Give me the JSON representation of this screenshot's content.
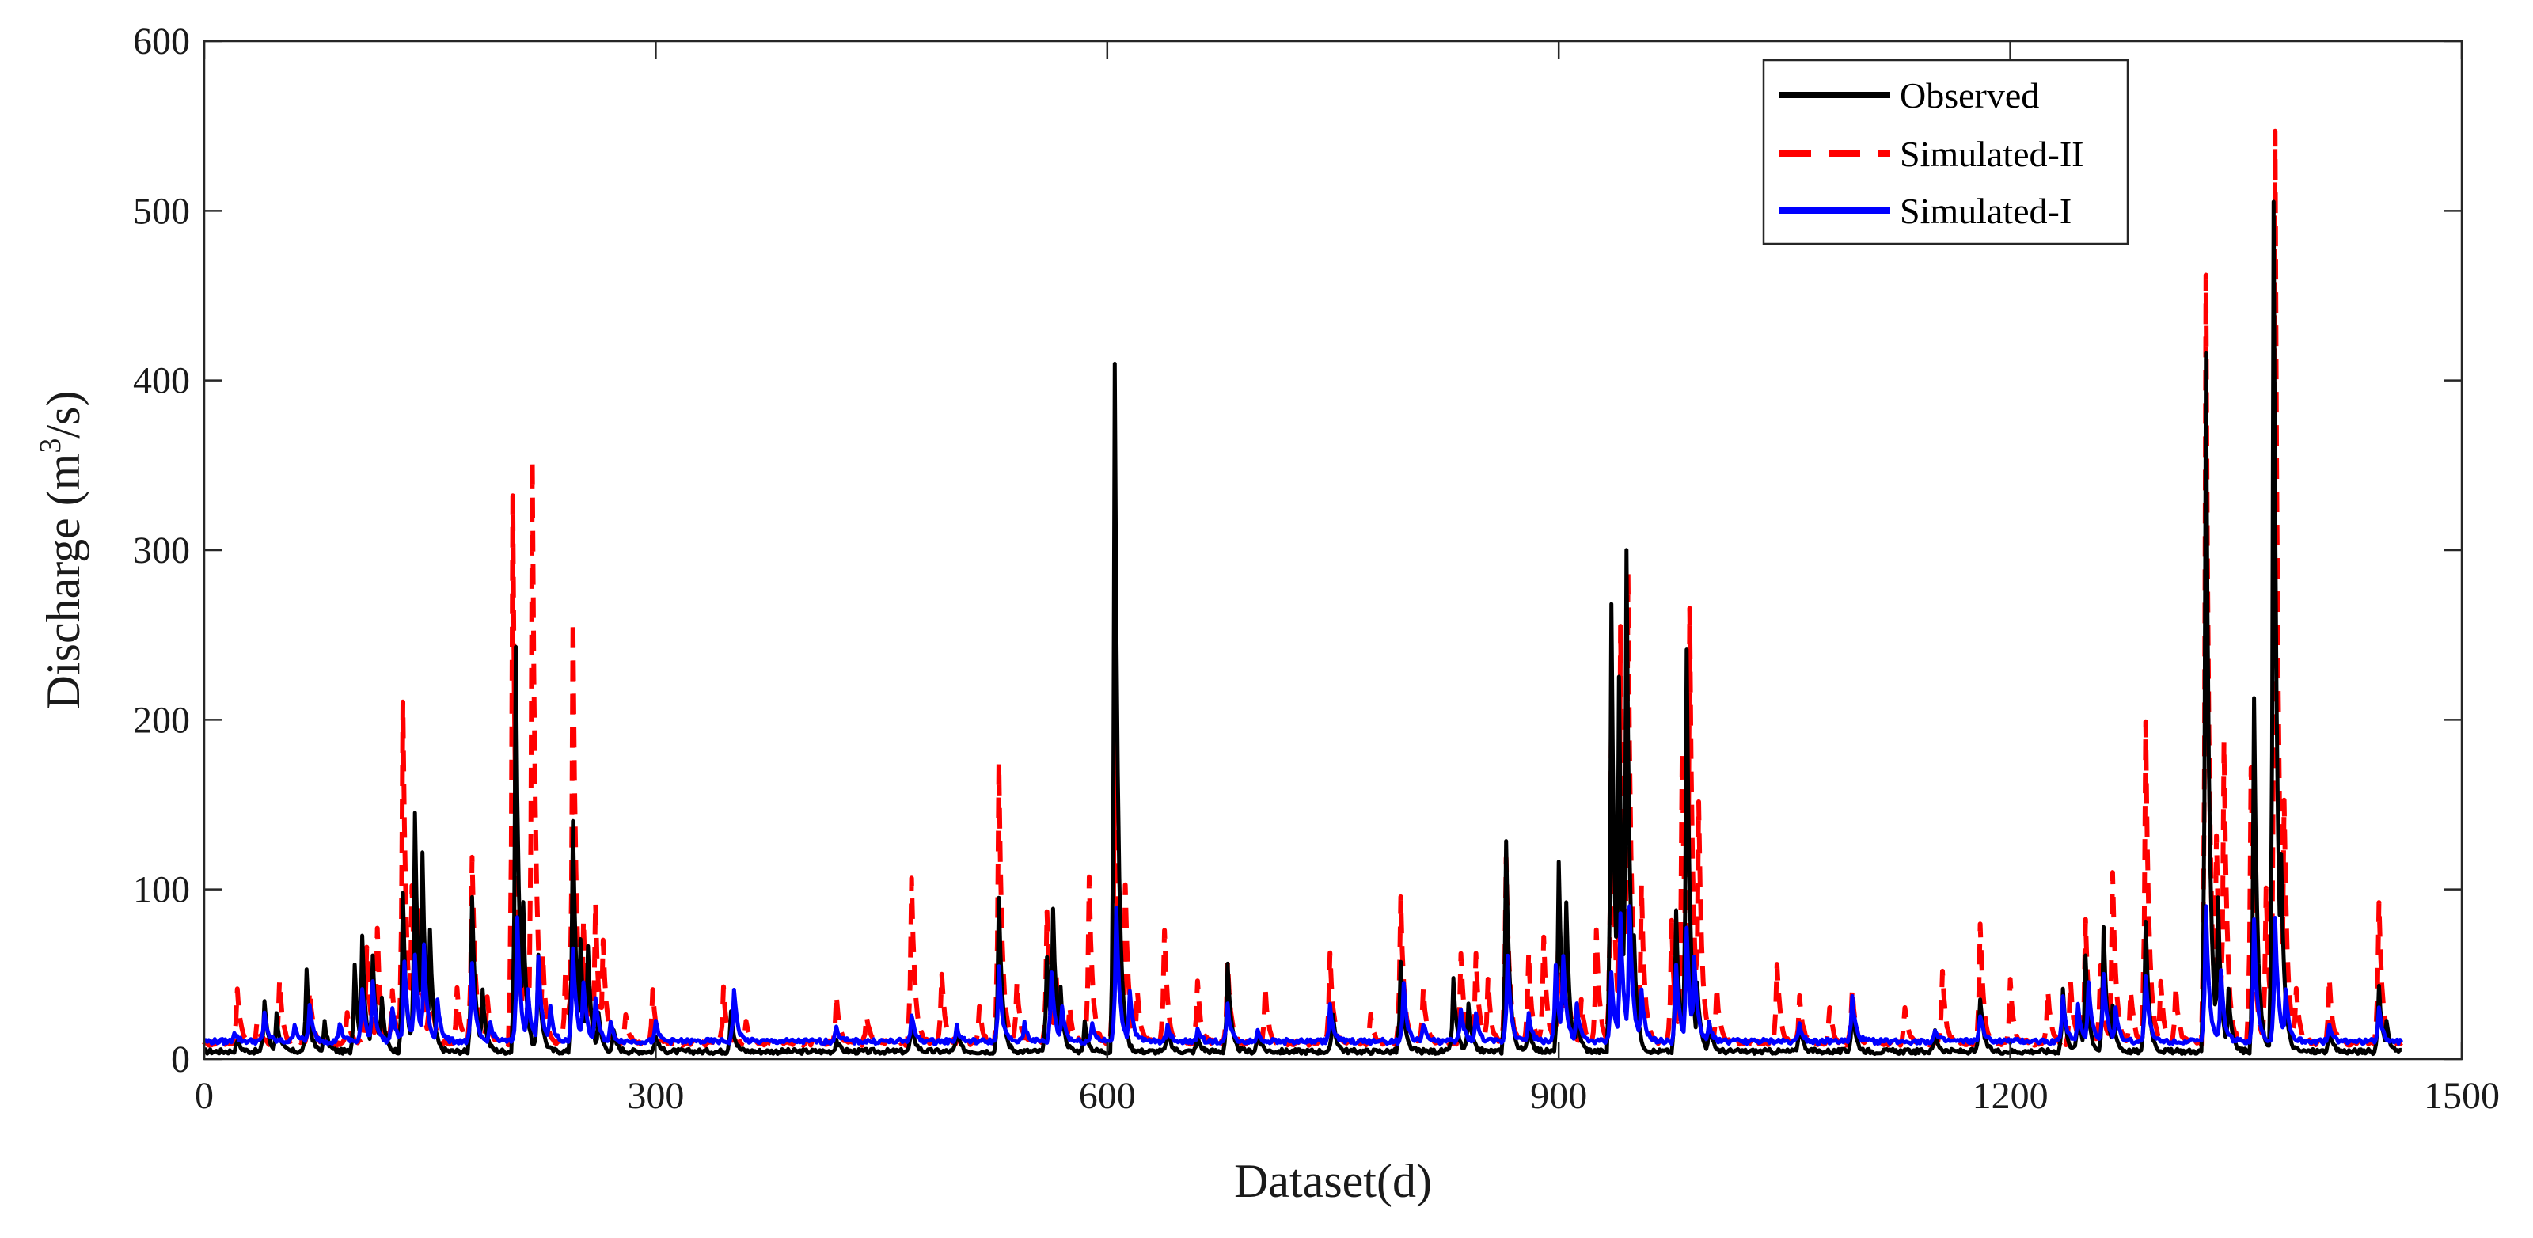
{
  "chart_data": {
    "type": "line",
    "title": "",
    "xlabel": "Dataset(d)",
    "ylabel_prefix": "Discharge (m",
    "ylabel_sup": "3",
    "ylabel_suffix": "/s)",
    "xlim": [
      0,
      1500
    ],
    "ylim": [
      0,
      600
    ],
    "x_ticks": [
      0,
      300,
      600,
      900,
      1200,
      1500
    ],
    "y_ticks": [
      0,
      100,
      200,
      300,
      400,
      500,
      600
    ],
    "grid": false,
    "legend_position": "top-right",
    "series": [
      {
        "name": "Observed",
        "color": "#000000",
        "style": "solid",
        "baseline": 3,
        "peaks": [
          [
            22,
            10
          ],
          [
            40,
            33
          ],
          [
            48,
            25
          ],
          [
            68,
            50
          ],
          [
            80,
            20
          ],
          [
            100,
            55
          ],
          [
            105,
            72
          ],
          [
            112,
            60
          ],
          [
            118,
            35
          ],
          [
            132,
            95
          ],
          [
            140,
            145
          ],
          [
            145,
            120
          ],
          [
            150,
            75
          ],
          [
            178,
            95
          ],
          [
            185,
            40
          ],
          [
            207,
            240
          ],
          [
            212,
            90
          ],
          [
            222,
            60
          ],
          [
            245,
            140
          ],
          [
            250,
            70
          ],
          [
            255,
            65
          ],
          [
            262,
            25
          ],
          [
            272,
            15
          ],
          [
            300,
            12
          ],
          [
            350,
            28
          ],
          [
            420,
            10
          ],
          [
            470,
            22
          ],
          [
            500,
            15
          ],
          [
            528,
            95
          ],
          [
            560,
            60
          ],
          [
            564,
            88
          ],
          [
            569,
            40
          ],
          [
            585,
            20
          ],
          [
            605,
            407
          ],
          [
            640,
            15
          ],
          [
            660,
            12
          ],
          [
            680,
            55
          ],
          [
            700,
            15
          ],
          [
            750,
            25
          ],
          [
            795,
            55
          ],
          [
            830,
            45
          ],
          [
            840,
            30
          ],
          [
            865,
            128
          ],
          [
            880,
            20
          ],
          [
            900,
            115
          ],
          [
            905,
            90
          ],
          [
            912,
            30
          ],
          [
            935,
            268
          ],
          [
            940,
            225
          ],
          [
            945,
            300
          ],
          [
            950,
            70
          ],
          [
            978,
            85
          ],
          [
            985,
            240
          ],
          [
            992,
            45
          ],
          [
            1000,
            20
          ],
          [
            1060,
            20
          ],
          [
            1095,
            30
          ],
          [
            1150,
            15
          ],
          [
            1180,
            35
          ],
          [
            1235,
            40
          ],
          [
            1245,
            30
          ],
          [
            1250,
            60
          ],
          [
            1262,
            75
          ],
          [
            1268,
            30
          ],
          [
            1290,
            80
          ],
          [
            1330,
            415
          ],
          [
            1338,
            95
          ],
          [
            1345,
            40
          ],
          [
            1362,
            210
          ],
          [
            1375,
            505
          ],
          [
            1380,
            120
          ],
          [
            1412,
            15
          ],
          [
            1445,
            42
          ],
          [
            1450,
            20
          ]
        ]
      },
      {
        "name": "Simulated-II",
        "color": "#ff0000",
        "style": "dashed",
        "baseline": 8,
        "peaks": [
          [
            22,
            40
          ],
          [
            35,
            20
          ],
          [
            50,
            45
          ],
          [
            70,
            40
          ],
          [
            95,
            25
          ],
          [
            108,
            65
          ],
          [
            115,
            75
          ],
          [
            125,
            40
          ],
          [
            132,
            210
          ],
          [
            138,
            100
          ],
          [
            143,
            85
          ],
          [
            150,
            60
          ],
          [
            168,
            40
          ],
          [
            178,
            118
          ],
          [
            188,
            35
          ],
          [
            205,
            330
          ],
          [
            212,
            70
          ],
          [
            218,
            352
          ],
          [
            225,
            60
          ],
          [
            240,
            50
          ],
          [
            245,
            258
          ],
          [
            252,
            80
          ],
          [
            260,
            90
          ],
          [
            265,
            70
          ],
          [
            280,
            25
          ],
          [
            298,
            40
          ],
          [
            345,
            40
          ],
          [
            360,
            20
          ],
          [
            420,
            35
          ],
          [
            440,
            25
          ],
          [
            470,
            105
          ],
          [
            490,
            50
          ],
          [
            515,
            30
          ],
          [
            528,
            173
          ],
          [
            540,
            45
          ],
          [
            560,
            85
          ],
          [
            566,
            50
          ],
          [
            575,
            30
          ],
          [
            588,
            105
          ],
          [
            605,
            190
          ],
          [
            612,
            100
          ],
          [
            620,
            40
          ],
          [
            638,
            75
          ],
          [
            660,
            45
          ],
          [
            680,
            55
          ],
          [
            705,
            40
          ],
          [
            748,
            60
          ],
          [
            775,
            25
          ],
          [
            795,
            95
          ],
          [
            810,
            40
          ],
          [
            835,
            62
          ],
          [
            845,
            60
          ],
          [
            853,
            45
          ],
          [
            865,
            118
          ],
          [
            880,
            60
          ],
          [
            890,
            70
          ],
          [
            900,
            80
          ],
          [
            905,
            70
          ],
          [
            915,
            35
          ],
          [
            925,
            75
          ],
          [
            935,
            200
          ],
          [
            941,
            255
          ],
          [
            946,
            285
          ],
          [
            955,
            100
          ],
          [
            975,
            80
          ],
          [
            982,
            180
          ],
          [
            987,
            265
          ],
          [
            993,
            150
          ],
          [
            1005,
            40
          ],
          [
            1045,
            55
          ],
          [
            1060,
            35
          ],
          [
            1080,
            30
          ],
          [
            1095,
            40
          ],
          [
            1130,
            30
          ],
          [
            1155,
            50
          ],
          [
            1180,
            78
          ],
          [
            1200,
            45
          ],
          [
            1225,
            40
          ],
          [
            1240,
            45
          ],
          [
            1250,
            80
          ],
          [
            1260,
            55
          ],
          [
            1268,
            110
          ],
          [
            1280,
            40
          ],
          [
            1290,
            198
          ],
          [
            1300,
            45
          ],
          [
            1310,
            40
          ],
          [
            1330,
            462
          ],
          [
            1337,
            130
          ],
          [
            1342,
            185
          ],
          [
            1360,
            170
          ],
          [
            1370,
            100
          ],
          [
            1376,
            545
          ],
          [
            1382,
            150
          ],
          [
            1390,
            40
          ],
          [
            1412,
            45
          ],
          [
            1445,
            90
          ]
        ]
      },
      {
        "name": "Simulated-I",
        "color": "#0000ff",
        "style": "solid",
        "baseline": 9,
        "peaks": [
          [
            20,
            15
          ],
          [
            40,
            25
          ],
          [
            60,
            20
          ],
          [
            70,
            30
          ],
          [
            90,
            20
          ],
          [
            105,
            40
          ],
          [
            112,
            45
          ],
          [
            125,
            30
          ],
          [
            133,
            55
          ],
          [
            140,
            60
          ],
          [
            146,
            65
          ],
          [
            155,
            35
          ],
          [
            178,
            55
          ],
          [
            190,
            20
          ],
          [
            208,
            82
          ],
          [
            215,
            40
          ],
          [
            222,
            60
          ],
          [
            230,
            30
          ],
          [
            245,
            65
          ],
          [
            252,
            45
          ],
          [
            260,
            35
          ],
          [
            270,
            20
          ],
          [
            300,
            20
          ],
          [
            352,
            40
          ],
          [
            420,
            18
          ],
          [
            470,
            25
          ],
          [
            500,
            18
          ],
          [
            528,
            52
          ],
          [
            545,
            20
          ],
          [
            563,
            50
          ],
          [
            570,
            30
          ],
          [
            590,
            20
          ],
          [
            606,
            88
          ],
          [
            615,
            40
          ],
          [
            640,
            18
          ],
          [
            660,
            15
          ],
          [
            680,
            30
          ],
          [
            700,
            15
          ],
          [
            748,
            30
          ],
          [
            797,
            42
          ],
          [
            810,
            20
          ],
          [
            835,
            28
          ],
          [
            845,
            25
          ],
          [
            866,
            60
          ],
          [
            880,
            25
          ],
          [
            898,
            55
          ],
          [
            903,
            60
          ],
          [
            912,
            30
          ],
          [
            935,
            50
          ],
          [
            941,
            85
          ],
          [
            947,
            90
          ],
          [
            955,
            40
          ],
          [
            978,
            55
          ],
          [
            985,
            75
          ],
          [
            990,
            60
          ],
          [
            1000,
            20
          ],
          [
            1060,
            20
          ],
          [
            1095,
            35
          ],
          [
            1150,
            15
          ],
          [
            1180,
            25
          ],
          [
            1235,
            35
          ],
          [
            1245,
            30
          ],
          [
            1252,
            45
          ],
          [
            1262,
            50
          ],
          [
            1270,
            30
          ],
          [
            1290,
            48
          ],
          [
            1330,
            88
          ],
          [
            1340,
            50
          ],
          [
            1362,
            80
          ],
          [
            1376,
            82
          ],
          [
            1383,
            40
          ],
          [
            1412,
            18
          ],
          [
            1445,
            30
          ]
        ]
      }
    ]
  }
}
